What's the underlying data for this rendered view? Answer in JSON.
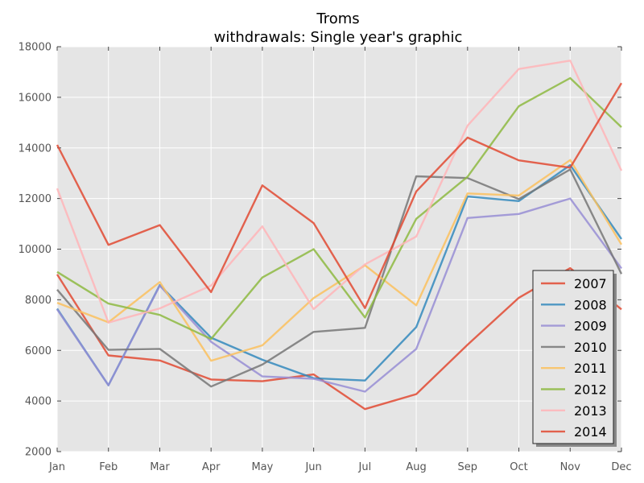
{
  "chart_data": {
    "type": "line",
    "title": "Troms",
    "subtitle": "withdrawals: Single year's graphic",
    "xlabel": "",
    "ylabel": "",
    "categories": [
      "Jan",
      "Feb",
      "Mar",
      "Apr",
      "May",
      "Jun",
      "Jul",
      "Aug",
      "Sep",
      "Oct",
      "Nov",
      "Dec"
    ],
    "ylim": [
      2000,
      18000
    ],
    "yticks": [
      "2000",
      "4000",
      "6000",
      "8000",
      "10000",
      "12000",
      "14000",
      "16000",
      "18000"
    ],
    "grid": true,
    "legend": "lower-right",
    "plot_background": "#e5e5e5",
    "series": [
      {
        "name": "2007",
        "color": "#e24a33",
        "values": [
          9000,
          5800,
          5600,
          4850,
          4780,
          5050,
          3680,
          4270,
          6220,
          8080,
          9250,
          7620
        ]
      },
      {
        "name": "2008",
        "color": "#348abd",
        "values": [
          7650,
          4620,
          8580,
          6500,
          5630,
          4900,
          4810,
          6920,
          12080,
          11900,
          13320,
          10400
        ]
      },
      {
        "name": "2009",
        "color": "#988ed5",
        "values": [
          7620,
          4620,
          8560,
          6340,
          4970,
          4880,
          4370,
          6060,
          11230,
          11390,
          12000,
          9240
        ]
      },
      {
        "name": "2010",
        "color": "#777777",
        "values": [
          8400,
          6020,
          6060,
          4570,
          5440,
          6730,
          6890,
          12880,
          12810,
          11980,
          13150,
          9020
        ]
      },
      {
        "name": "2011",
        "color": "#fbc15e",
        "values": [
          7880,
          7110,
          8700,
          5590,
          6200,
          8070,
          9360,
          7780,
          12200,
          12120,
          13520,
          10180
        ]
      },
      {
        "name": "2012",
        "color": "#8eba42",
        "values": [
          9100,
          7850,
          7400,
          6450,
          8880,
          10000,
          7300,
          11200,
          12860,
          15650,
          16760,
          14820
        ]
      },
      {
        "name": "2013",
        "color": "#ffb5b8",
        "values": [
          12400,
          7100,
          7660,
          8560,
          10900,
          7630,
          9400,
          10500,
          14880,
          17120,
          17450,
          13100
        ]
      },
      {
        "name": "2014",
        "color": "#e24a33",
        "values": [
          14120,
          10170,
          10950,
          8300,
          12520,
          11030,
          7670,
          12280,
          14410,
          13510,
          13220,
          16560
        ]
      }
    ]
  }
}
